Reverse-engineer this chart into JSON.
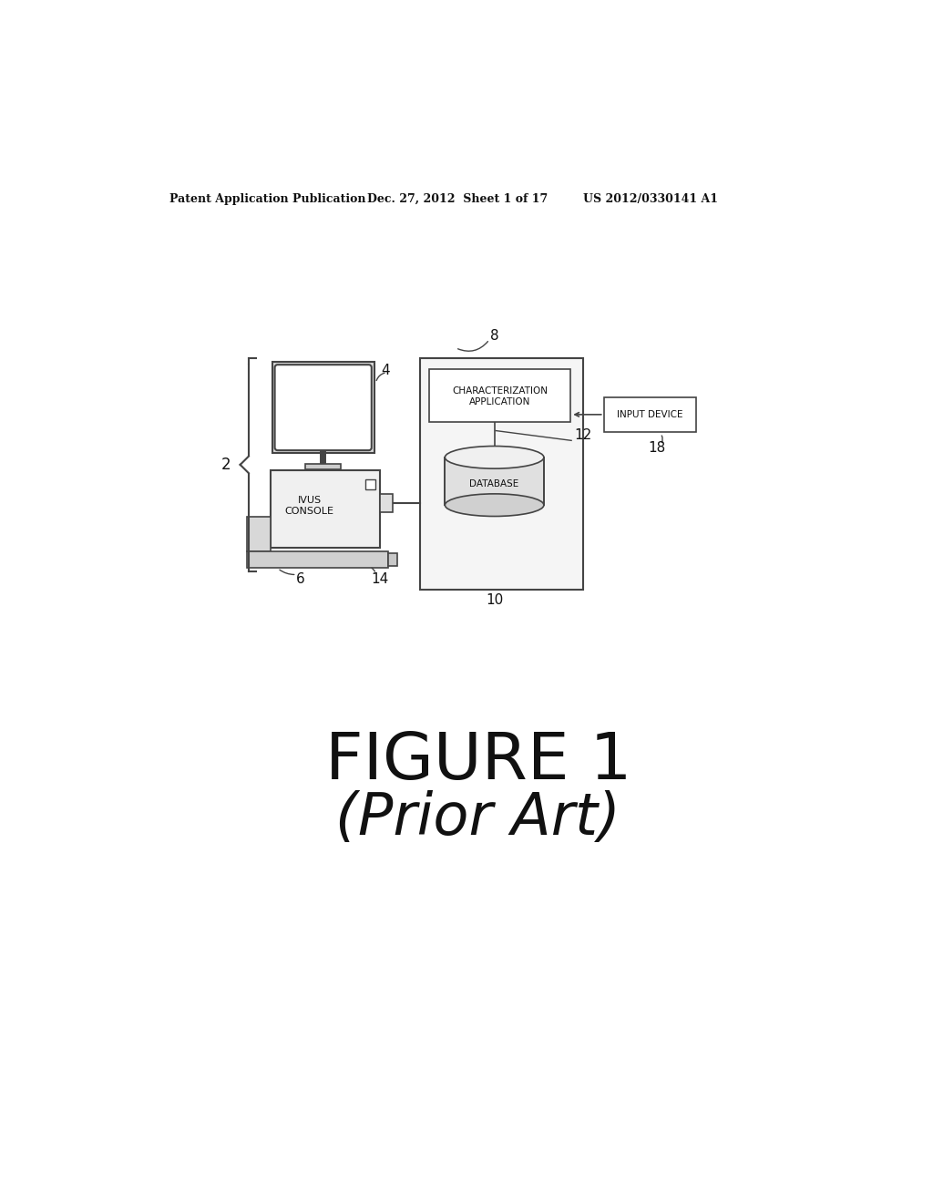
{
  "bg_color": "#ffffff",
  "header_left": "Patent Application Publication",
  "header_mid": "Dec. 27, 2012  Sheet 1 of 17",
  "header_right": "US 2012/0330141 A1",
  "figure_label": "FIGURE 1",
  "figure_sublabel": "(Prior Art)",
  "label_2": "2",
  "label_4": "4",
  "label_6": "6",
  "label_8": "8",
  "label_10": "10",
  "label_12": "12",
  "label_14": "14",
  "label_18": "18",
  "text_ivus": "IVUS\nCONSOLE",
  "text_char_app": "CHARACTERIZATION\nAPPLICATION",
  "text_database": "DATABASE",
  "text_input": "INPUT DEVICE",
  "ec": "#444444",
  "lc": "#444444"
}
